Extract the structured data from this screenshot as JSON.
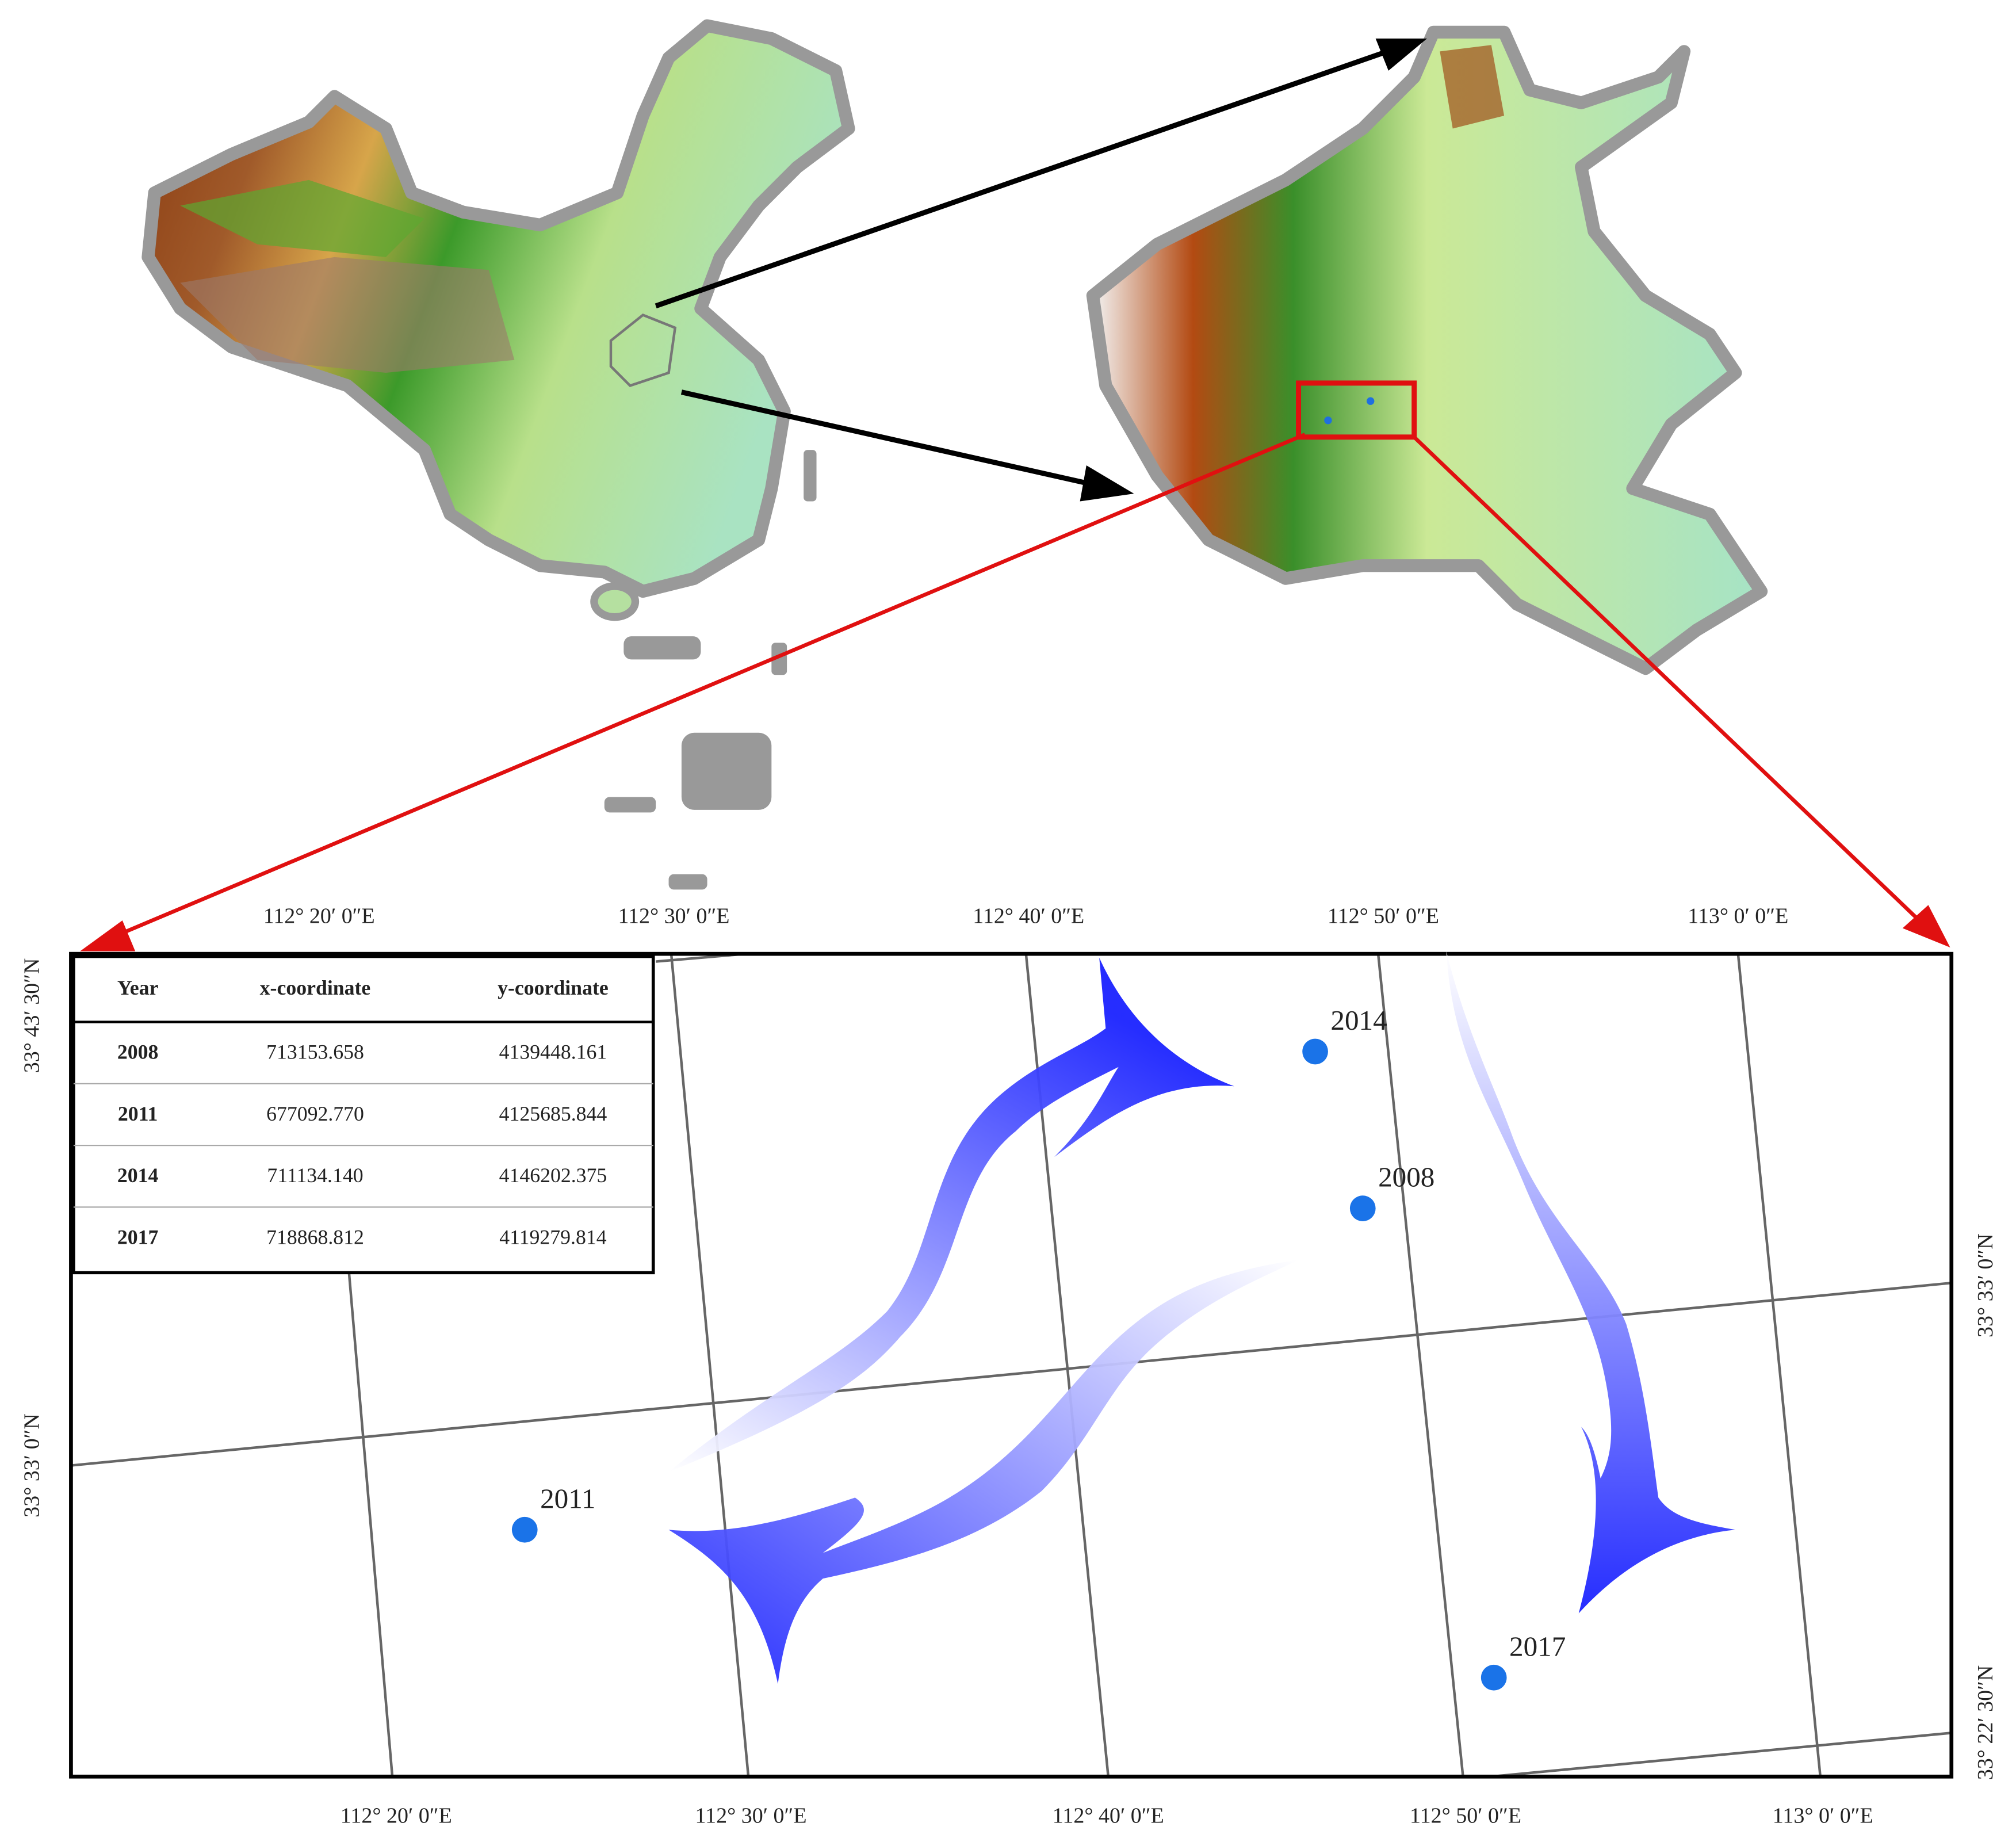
{
  "top_labels": [
    "112° 20′ 0″E",
    "112° 30′ 0″E",
    "112° 40′ 0″E",
    "112° 50′ 0″E",
    "113° 0′ 0″E"
  ],
  "bottom_labels": [
    "112° 20′ 0″E",
    "112° 30′ 0″E",
    "112° 40′ 0″E",
    "112° 50′ 0″E",
    "113° 0′ 0″E"
  ],
  "left_labels": [
    "33° 43′ 30″N",
    "33° 33′ 0″N"
  ],
  "right_labels": [
    "33° 33′ 0″N",
    "33° 22′ 30″N"
  ],
  "table": {
    "header": [
      "Year",
      "x-coordinate",
      "y-coordinate"
    ],
    "rows": [
      [
        "2008",
        "713153.658",
        "4139448.161"
      ],
      [
        "2011",
        "677092.770",
        "4125685.844"
      ],
      [
        "2014",
        "711134.140",
        "4146202.375"
      ],
      [
        "2017",
        "718868.812",
        "4119279.814"
      ]
    ]
  },
  "points": [
    "2014",
    "2008",
    "2011",
    "2017"
  ]
}
